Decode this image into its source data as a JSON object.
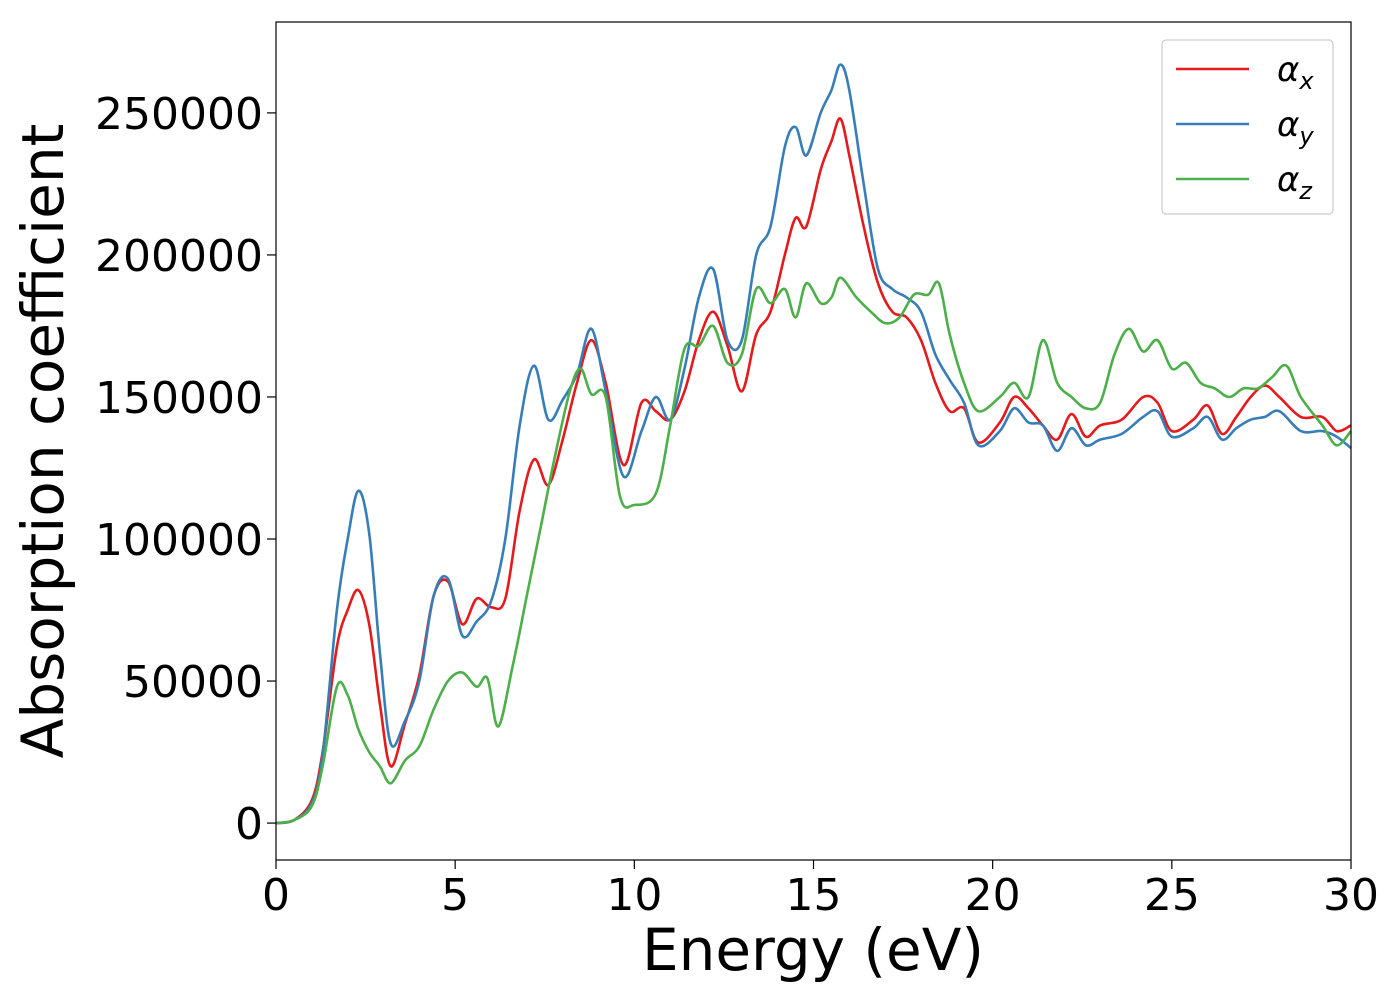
{
  "chart_data": {
    "type": "line",
    "title": "",
    "xlabel": "Energy (eV)",
    "ylabel": "Absorption coefficient",
    "xlim": [
      0,
      30
    ],
    "ylim": [
      -13000,
      282000
    ],
    "xticks": [
      0,
      5,
      10,
      15,
      20,
      25,
      30
    ],
    "xtick_labels": [
      "0",
      "5",
      "10",
      "15",
      "20",
      "25",
      "30"
    ],
    "yticks": [
      0,
      50000,
      100000,
      150000,
      200000,
      250000
    ],
    "ytick_labels": [
      "0",
      "50000",
      "100000",
      "150000",
      "200000",
      "250000"
    ],
    "grid": false,
    "legend_position": "top-right",
    "series": [
      {
        "name": "α_x",
        "symbol": "α",
        "subscript": "x",
        "color": "#e41a1c",
        "points": [
          [
            0,
            0
          ],
          [
            0.5,
            1000
          ],
          [
            1,
            8000
          ],
          [
            1.3,
            25000
          ],
          [
            1.7,
            62000
          ],
          [
            2,
            75000
          ],
          [
            2.3,
            82000
          ],
          [
            2.6,
            70000
          ],
          [
            2.9,
            42000
          ],
          [
            3.2,
            20000
          ],
          [
            3.6,
            35000
          ],
          [
            4,
            52000
          ],
          [
            4.4,
            80000
          ],
          [
            4.8,
            85000
          ],
          [
            5.2,
            70000
          ],
          [
            5.6,
            79000
          ],
          [
            6,
            76000
          ],
          [
            6.4,
            79000
          ],
          [
            6.8,
            110000
          ],
          [
            7.2,
            128000
          ],
          [
            7.6,
            119000
          ],
          [
            8,
            135000
          ],
          [
            8.4,
            155000
          ],
          [
            8.8,
            170000
          ],
          [
            9.2,
            155000
          ],
          [
            9.7,
            126000
          ],
          [
            10.2,
            148000
          ],
          [
            10.6,
            145000
          ],
          [
            11,
            142000
          ],
          [
            11.4,
            152000
          ],
          [
            11.8,
            170000
          ],
          [
            12.2,
            180000
          ],
          [
            12.6,
            168000
          ],
          [
            13,
            152000
          ],
          [
            13.4,
            172000
          ],
          [
            13.8,
            180000
          ],
          [
            14.2,
            200000
          ],
          [
            14.5,
            213000
          ],
          [
            14.8,
            210000
          ],
          [
            15.2,
            230000
          ],
          [
            15.5,
            240000
          ],
          [
            15.75,
            248000
          ],
          [
            16,
            235000
          ],
          [
            16.4,
            210000
          ],
          [
            16.8,
            190000
          ],
          [
            17.2,
            180000
          ],
          [
            17.6,
            178000
          ],
          [
            18,
            170000
          ],
          [
            18.4,
            155000
          ],
          [
            18.8,
            145000
          ],
          [
            19.2,
            146000
          ],
          [
            19.6,
            134000
          ],
          [
            20.2,
            141000
          ],
          [
            20.6,
            150000
          ],
          [
            21,
            146000
          ],
          [
            21.4,
            140000
          ],
          [
            21.8,
            135000
          ],
          [
            22.2,
            144000
          ],
          [
            22.6,
            136000
          ],
          [
            23,
            140000
          ],
          [
            23.6,
            142000
          ],
          [
            24.2,
            150000
          ],
          [
            24.6,
            148000
          ],
          [
            25,
            138000
          ],
          [
            25.6,
            142000
          ],
          [
            26,
            147000
          ],
          [
            26.4,
            137000
          ],
          [
            26.8,
            143000
          ],
          [
            27.2,
            150000
          ],
          [
            27.6,
            154000
          ],
          [
            28,
            150000
          ],
          [
            28.6,
            143000
          ],
          [
            29.2,
            143000
          ],
          [
            29.6,
            138000
          ],
          [
            30,
            140000
          ]
        ]
      },
      {
        "name": "α_y",
        "symbol": "α",
        "subscript": "y",
        "color": "#377eb8",
        "points": [
          [
            0,
            0
          ],
          [
            0.5,
            1000
          ],
          [
            1,
            7000
          ],
          [
            1.3,
            24000
          ],
          [
            1.7,
            75000
          ],
          [
            2,
            100000
          ],
          [
            2.3,
            117000
          ],
          [
            2.6,
            102000
          ],
          [
            2.9,
            60000
          ],
          [
            3.2,
            28000
          ],
          [
            3.6,
            36000
          ],
          [
            4,
            50000
          ],
          [
            4.4,
            80000
          ],
          [
            4.8,
            86000
          ],
          [
            5.2,
            66000
          ],
          [
            5.6,
            71000
          ],
          [
            6,
            78000
          ],
          [
            6.4,
            100000
          ],
          [
            6.8,
            140000
          ],
          [
            7.2,
            161000
          ],
          [
            7.6,
            142000
          ],
          [
            8,
            149000
          ],
          [
            8.4,
            158000
          ],
          [
            8.8,
            174000
          ],
          [
            9.2,
            152000
          ],
          [
            9.7,
            122000
          ],
          [
            10.2,
            138000
          ],
          [
            10.6,
            150000
          ],
          [
            11,
            142000
          ],
          [
            11.4,
            160000
          ],
          [
            11.8,
            185000
          ],
          [
            12.2,
            195000
          ],
          [
            12.6,
            170000
          ],
          [
            13,
            170000
          ],
          [
            13.4,
            200000
          ],
          [
            13.8,
            210000
          ],
          [
            14.2,
            238000
          ],
          [
            14.5,
            245000
          ],
          [
            14.8,
            235000
          ],
          [
            15.2,
            250000
          ],
          [
            15.5,
            258000
          ],
          [
            15.75,
            267000
          ],
          [
            16,
            258000
          ],
          [
            16.4,
            225000
          ],
          [
            16.8,
            195000
          ],
          [
            17.2,
            188000
          ],
          [
            17.6,
            185000
          ],
          [
            18,
            180000
          ],
          [
            18.4,
            165000
          ],
          [
            18.8,
            156000
          ],
          [
            19.2,
            148000
          ],
          [
            19.6,
            133000
          ],
          [
            20.2,
            138000
          ],
          [
            20.6,
            146000
          ],
          [
            21,
            141000
          ],
          [
            21.4,
            140000
          ],
          [
            21.8,
            131000
          ],
          [
            22.2,
            139000
          ],
          [
            22.6,
            133000
          ],
          [
            23,
            135000
          ],
          [
            23.6,
            137000
          ],
          [
            24.2,
            143000
          ],
          [
            24.6,
            145000
          ],
          [
            25,
            136000
          ],
          [
            25.6,
            139000
          ],
          [
            26,
            143000
          ],
          [
            26.4,
            135000
          ],
          [
            26.8,
            139000
          ],
          [
            27.2,
            142000
          ],
          [
            27.6,
            143000
          ],
          [
            28,
            145000
          ],
          [
            28.6,
            138000
          ],
          [
            29.2,
            138000
          ],
          [
            29.6,
            136000
          ],
          [
            30,
            132000
          ]
        ]
      },
      {
        "name": "α_z",
        "symbol": "α",
        "subscript": "z",
        "color": "#4daf4a",
        "points": [
          [
            0,
            0
          ],
          [
            0.5,
            1000
          ],
          [
            1,
            6000
          ],
          [
            1.3,
            20000
          ],
          [
            1.7,
            48000
          ],
          [
            2,
            45000
          ],
          [
            2.3,
            33000
          ],
          [
            2.6,
            25000
          ],
          [
            2.9,
            20000
          ],
          [
            3.2,
            14000
          ],
          [
            3.6,
            22000
          ],
          [
            4,
            27000
          ],
          [
            4.4,
            40000
          ],
          [
            4.8,
            50000
          ],
          [
            5.2,
            53000
          ],
          [
            5.6,
            48000
          ],
          [
            5.9,
            51000
          ],
          [
            6.2,
            34000
          ],
          [
            6.6,
            55000
          ],
          [
            7,
            80000
          ],
          [
            7.4,
            105000
          ],
          [
            7.8,
            130000
          ],
          [
            8.2,
            152000
          ],
          [
            8.5,
            160000
          ],
          [
            8.8,
            151000
          ],
          [
            9.2,
            150000
          ],
          [
            9.6,
            115000
          ],
          [
            10,
            112000
          ],
          [
            10.6,
            116000
          ],
          [
            11,
            140000
          ],
          [
            11.4,
            167000
          ],
          [
            11.8,
            168000
          ],
          [
            12.2,
            175000
          ],
          [
            12.6,
            162000
          ],
          [
            13,
            165000
          ],
          [
            13.4,
            188000
          ],
          [
            13.8,
            183000
          ],
          [
            14.2,
            188000
          ],
          [
            14.5,
            178000
          ],
          [
            14.8,
            190000
          ],
          [
            15.2,
            183000
          ],
          [
            15.5,
            185000
          ],
          [
            15.75,
            192000
          ],
          [
            16.2,
            185000
          ],
          [
            16.6,
            180000
          ],
          [
            17,
            176000
          ],
          [
            17.4,
            178000
          ],
          [
            17.8,
            186000
          ],
          [
            18.2,
            186000
          ],
          [
            18.5,
            190000
          ],
          [
            18.8,
            172000
          ],
          [
            19.2,
            155000
          ],
          [
            19.6,
            145000
          ],
          [
            20.2,
            150000
          ],
          [
            20.6,
            155000
          ],
          [
            21,
            150000
          ],
          [
            21.4,
            170000
          ],
          [
            21.8,
            155000
          ],
          [
            22.2,
            150000
          ],
          [
            22.6,
            146000
          ],
          [
            23,
            148000
          ],
          [
            23.4,
            165000
          ],
          [
            23.8,
            174000
          ],
          [
            24.2,
            166000
          ],
          [
            24.6,
            170000
          ],
          [
            25,
            160000
          ],
          [
            25.4,
            162000
          ],
          [
            25.8,
            155000
          ],
          [
            26.2,
            153000
          ],
          [
            26.6,
            150000
          ],
          [
            27,
            153000
          ],
          [
            27.4,
            153000
          ],
          [
            27.8,
            157000
          ],
          [
            28.2,
            161000
          ],
          [
            28.6,
            150000
          ],
          [
            29.2,
            140000
          ],
          [
            29.6,
            133000
          ],
          [
            30,
            138000
          ]
        ]
      }
    ]
  }
}
